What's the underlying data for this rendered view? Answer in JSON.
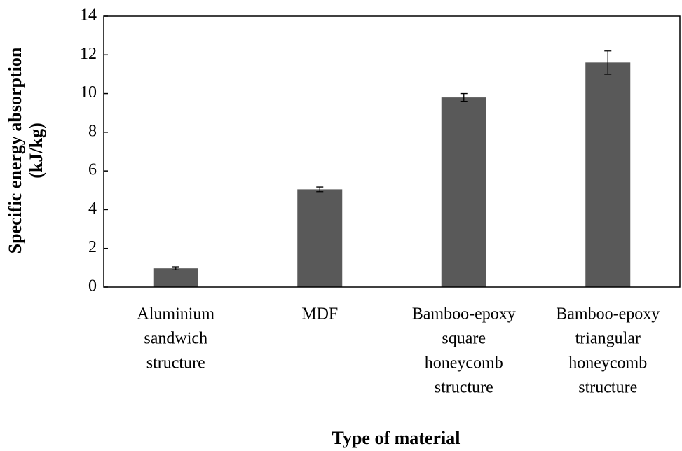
{
  "chart_data": {
    "type": "bar",
    "x_label": "Type of material",
    "y_label": [
      "Specific energy absorption",
      "(kJ/kg)"
    ],
    "categories": [
      [
        "Aluminium",
        "sandwich",
        "structure"
      ],
      [
        "MDF"
      ],
      [
        "Bamboo-epoxy",
        "square",
        "honeycomb",
        "structure"
      ],
      [
        "Bamboo-epoxy",
        "triangular",
        "honeycomb",
        "structure"
      ]
    ],
    "values": [
      0.97,
      5.05,
      9.8,
      11.6
    ],
    "errors": [
      0.08,
      0.12,
      0.2,
      0.6
    ],
    "color": "#595959",
    "ylim": [
      0,
      14
    ],
    "yticks": [
      0,
      2,
      4,
      6,
      8,
      10,
      12,
      14
    ],
    "grid": false
  }
}
